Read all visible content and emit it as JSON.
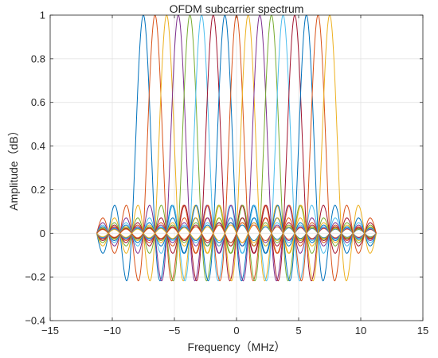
{
  "chart_data": {
    "type": "line",
    "title": "OFDM subcarrier spectrum",
    "xlabel": "Frequency（MHz）",
    "ylabel": "Amplitude（dB）",
    "xlim": [
      -15,
      15
    ],
    "ylim": [
      -0.4,
      1
    ],
    "xticks": [
      -15,
      -10,
      -5,
      0,
      5,
      10,
      15
    ],
    "yticks": [
      -0.4,
      -0.2,
      0,
      0.2,
      0.4,
      0.6,
      0.8,
      1
    ],
    "xtick_labels": [
      "−15",
      "−10",
      "−5",
      "0",
      "5",
      "10",
      "15"
    ],
    "ytick_labels": [
      "−0.4",
      "−0.2",
      "0",
      "0.2",
      "0.4",
      "0.6",
      "0.8",
      "1"
    ],
    "grid": true,
    "legend": "none",
    "subcarrier_spacing_mhz": 0.9375,
    "x_range_mhz": [
      -11.25,
      11.25
    ],
    "series": [
      {
        "peak_freq_mhz": -7.5,
        "peak_amplitude": 1,
        "color": "#0072BD"
      },
      {
        "peak_freq_mhz": -6.5625,
        "peak_amplitude": 1,
        "color": "#D95319"
      },
      {
        "peak_freq_mhz": -5.625,
        "peak_amplitude": 1,
        "color": "#EDB120"
      },
      {
        "peak_freq_mhz": -4.6875,
        "peak_amplitude": 1,
        "color": "#7E2F8E"
      },
      {
        "peak_freq_mhz": -3.75,
        "peak_amplitude": 1,
        "color": "#77AC30"
      },
      {
        "peak_freq_mhz": -2.8125,
        "peak_amplitude": 1,
        "color": "#4DBEEE"
      },
      {
        "peak_freq_mhz": -1.875,
        "peak_amplitude": 1,
        "color": "#A2142F"
      },
      {
        "peak_freq_mhz": -0.9375,
        "peak_amplitude": 1,
        "color": "#0072BD"
      },
      {
        "peak_freq_mhz": 0,
        "peak_amplitude": 1,
        "color": "#D95319"
      },
      {
        "peak_freq_mhz": 0.9375,
        "peak_amplitude": 1,
        "color": "#EDB120"
      },
      {
        "peak_freq_mhz": 1.875,
        "peak_amplitude": 1,
        "color": "#7E2F8E"
      },
      {
        "peak_freq_mhz": 2.8125,
        "peak_amplitude": 1,
        "color": "#77AC30"
      },
      {
        "peak_freq_mhz": 3.75,
        "peak_amplitude": 1,
        "color": "#4DBEEE"
      },
      {
        "peak_freq_mhz": 4.6875,
        "peak_amplitude": 1,
        "color": "#A2142F"
      },
      {
        "peak_freq_mhz": 5.625,
        "peak_amplitude": 1,
        "color": "#0072BD"
      },
      {
        "peak_freq_mhz": 6.5625,
        "peak_amplitude": 1,
        "color": "#D95319"
      },
      {
        "peak_freq_mhz": 7.5,
        "peak_amplitude": 1,
        "color": "#EDB120"
      }
    ]
  }
}
